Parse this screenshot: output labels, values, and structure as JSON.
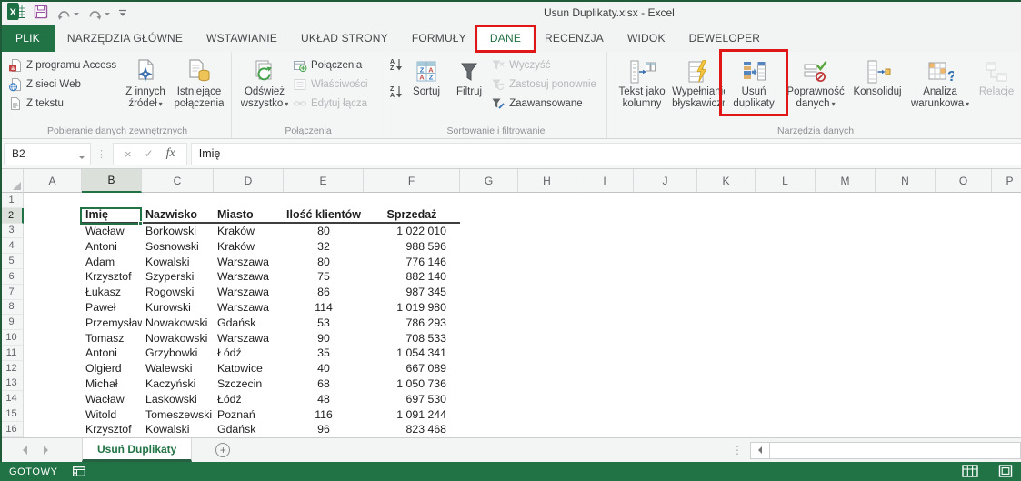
{
  "title_bar": {
    "title": "Usun Duplikaty.xlsx - Excel"
  },
  "tabs": [
    "PLIK",
    "NARZĘDZIA GŁÓWNE",
    "WSTAWIANIE",
    "UKŁAD STRONY",
    "FORMUŁY",
    "DANE",
    "RECENZJA",
    "WIDOK",
    "DEWELOPER"
  ],
  "ribbon": {
    "groups": [
      {
        "label": "Pobieranie danych zewnętrznych",
        "small": [
          {
            "label": "Z programu Access"
          },
          {
            "label": "Z sieci Web"
          },
          {
            "label": "Z tekstu"
          }
        ],
        "big": [
          {
            "line1": "Z innych",
            "line2": "źródeł",
            "dropdown": true
          },
          {
            "line1": "Istniejące",
            "line2": "połączenia"
          }
        ]
      },
      {
        "label": "Połączenia",
        "big": [
          {
            "line1": "Odśwież",
            "line2": "wszystko",
            "dropdown": true
          }
        ],
        "small": [
          {
            "label": "Połączenia"
          },
          {
            "label": "Właściwości",
            "disabled": true
          },
          {
            "label": "Edytuj łącza",
            "disabled": true
          }
        ]
      },
      {
        "label": "Sortowanie i filtrowanie",
        "big": [
          {
            "line1": "Sortuj"
          },
          {
            "line1": "Filtruj"
          }
        ],
        "small": [
          {
            "label": "Wyczyść",
            "disabled": true
          },
          {
            "label": "Zastosuj ponownie",
            "disabled": true
          },
          {
            "label": "Zaawansowane"
          }
        ]
      },
      {
        "label": "Narzędzia danych",
        "big": [
          {
            "line1": "Tekst jako",
            "line2": "kolumny"
          },
          {
            "line1": "Wypełnianie",
            "line2": "błyskawiczne"
          },
          {
            "line1": "Usuń",
            "line2": "duplikaty",
            "highlighted": true
          },
          {
            "line1": "Poprawność",
            "line2": "danych",
            "dropdown": true
          },
          {
            "line1": "Konsoliduj"
          },
          {
            "line1": "Analiza",
            "line2": "warunkowa",
            "dropdown": true
          },
          {
            "line1": "Relacje",
            "disabled": true
          }
        ]
      }
    ]
  },
  "formula_bar": {
    "name_box": "B2",
    "value": "Imię",
    "fx": "fx",
    "cancel": "×",
    "enter": "✓"
  },
  "grid": {
    "column_letters": [
      "A",
      "B",
      "C",
      "D",
      "E",
      "F",
      "G",
      "H",
      "I",
      "J",
      "K",
      "L",
      "M",
      "N",
      "O",
      "P"
    ],
    "selected_column": "B",
    "selected_cell": "B2",
    "row_numbers": [
      1,
      2,
      3,
      4,
      5,
      6,
      7,
      8,
      9,
      10,
      11,
      12,
      13,
      14,
      15,
      16
    ],
    "table": {
      "headers": [
        "Imię",
        "Nazwisko",
        "Miasto",
        "Ilość klientów",
        "Sprzedaż"
      ],
      "rows": [
        [
          "Wacław",
          "Borkowski",
          "Kraków",
          "80",
          "1 022 010"
        ],
        [
          "Antoni",
          "Sosnowski",
          "Kraków",
          "32",
          "988 596"
        ],
        [
          "Adam",
          "Kowalski",
          "Warszawa",
          "80",
          "776 146"
        ],
        [
          "Krzysztof",
          "Szyperski",
          "Warszawa",
          "75",
          "882 140"
        ],
        [
          "Łukasz",
          "Rogowski",
          "Warszawa",
          "86",
          "987 345"
        ],
        [
          "Paweł",
          "Kurowski",
          "Warszawa",
          "114",
          "1 019 980"
        ],
        [
          "Przemysław",
          "Nowakowski",
          "Gdańsk",
          "53",
          "786 293"
        ],
        [
          "Tomasz",
          "Nowakowski",
          "Warszawa",
          "90",
          "708 533"
        ],
        [
          "Antoni",
          "Grzybowki",
          "Łódź",
          "35",
          "1 054 341"
        ],
        [
          "Olgierd",
          "Walewski",
          "Katowice",
          "40",
          "667 089"
        ],
        [
          "Michał",
          "Kaczyński",
          "Szczecin",
          "68",
          "1 050 736"
        ],
        [
          "Wacław",
          "Laskowski",
          "Łódź",
          "48",
          "697 530"
        ],
        [
          "Witold",
          "Tomeszewski",
          "Poznań",
          "116",
          "1 091 244"
        ],
        [
          "Krzysztof",
          "Kowalski",
          "Gdańsk",
          "96",
          "823 468"
        ]
      ]
    }
  },
  "sheet_bar": {
    "active_tab": "Usuń Duplikaty",
    "add_label": "+"
  },
  "status_bar": {
    "mode": "GOTOWY"
  },
  "icons": {
    "dropdown": "▾",
    "overflow_dots": "⋮"
  },
  "colors": {
    "excel_green": "#217346",
    "highlight_red": "#e01717",
    "dup_blue": "#5585c0",
    "dup_tan": "#ddb06c"
  }
}
